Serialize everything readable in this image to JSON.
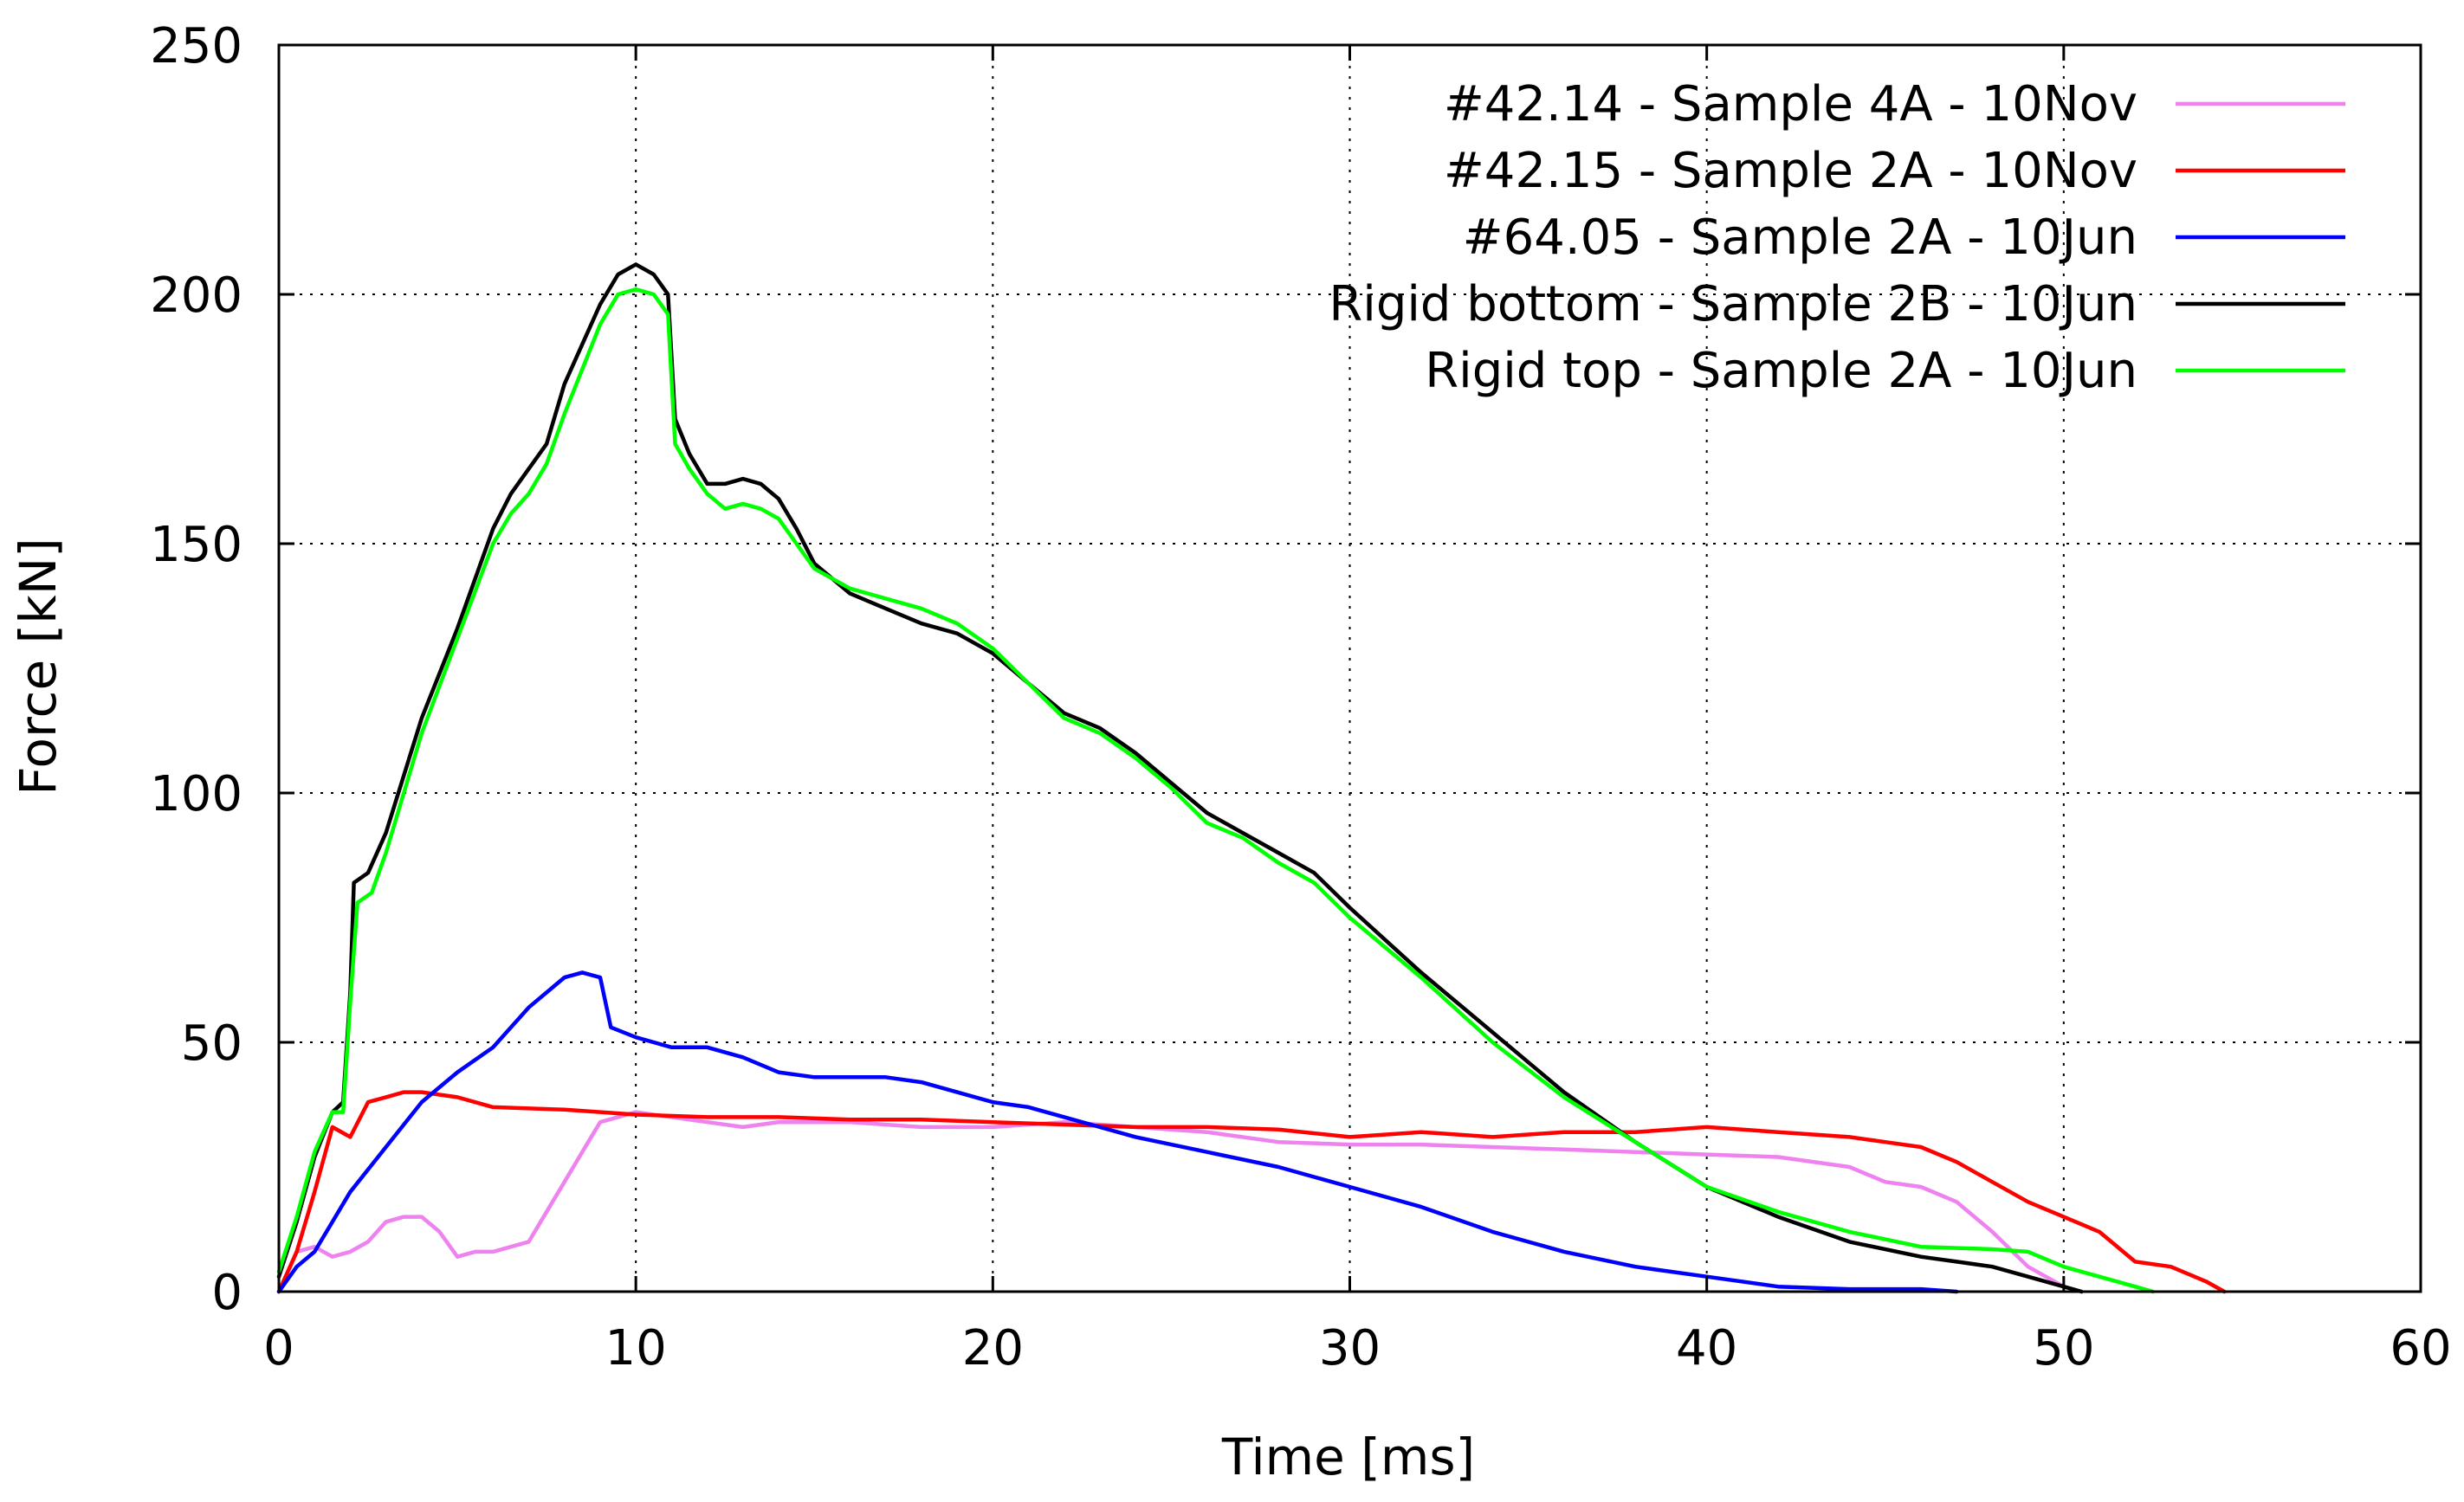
{
  "chart_data": {
    "type": "line",
    "title": "",
    "xlabel": "Time [ms]",
    "ylabel": "Force [kN]",
    "xlim": [
      0,
      60
    ],
    "ylim": [
      0,
      250
    ],
    "xticks": [
      0,
      10,
      20,
      30,
      40,
      50,
      60
    ],
    "yticks": [
      0,
      50,
      100,
      150,
      200,
      250
    ],
    "xtick_labels": [
      "0",
      "10",
      "20",
      "30",
      "40",
      "50",
      "60"
    ],
    "ytick_labels": [
      "0",
      "50",
      "100",
      "150",
      "200",
      "250"
    ],
    "grid": true,
    "legend_position": "top-right",
    "series": [
      {
        "name": "#42.14 - Sample 4A - 10Nov",
        "color": "#ee82ee",
        "x": [
          0,
          0.5,
          1,
          1.5,
          2,
          2.5,
          3,
          3.5,
          4,
          4.5,
          5,
          5.5,
          6,
          6.5,
          7,
          7.5,
          8,
          8.5,
          9,
          10,
          11,
          12,
          13,
          14,
          15,
          16,
          18,
          20,
          22,
          24,
          26,
          28,
          30,
          32,
          34,
          36,
          38,
          40,
          42,
          44,
          45,
          46,
          47,
          48,
          49,
          50,
          50.5
        ],
        "y": [
          0,
          8,
          9,
          7,
          8,
          10,
          14,
          15,
          15,
          12,
          7,
          8,
          8,
          9,
          10,
          16,
          22,
          28,
          34,
          36,
          35,
          34,
          33,
          34,
          34,
          34,
          33,
          33,
          34,
          33,
          32,
          30,
          29.5,
          29.5,
          29,
          28.5,
          28,
          27.5,
          27,
          25,
          22,
          21,
          18,
          12,
          5,
          1,
          0
        ]
      },
      {
        "name": "#42.15 - Sample 2A - 10Nov",
        "color": "#ff0000",
        "x": [
          0,
          0.5,
          1,
          1.5,
          2,
          2.5,
          3,
          3.5,
          4,
          5,
          6,
          8,
          10,
          12,
          14,
          16,
          18,
          20,
          22,
          24,
          26,
          28,
          30,
          32,
          34,
          36,
          38,
          40,
          42,
          44,
          45,
          46,
          47,
          48,
          49,
          50,
          51,
          52,
          53,
          54,
          54.5
        ],
        "y": [
          0,
          8,
          20,
          33,
          31,
          38,
          39,
          40,
          40,
          39,
          37,
          36.5,
          35.5,
          35,
          35,
          34.5,
          34.5,
          34,
          33.5,
          33,
          33,
          32.5,
          31,
          32,
          31,
          32,
          32,
          33,
          32,
          31,
          30,
          29,
          26,
          22,
          18,
          15,
          12,
          6,
          5,
          2,
          0
        ]
      },
      {
        "name": "#64.05 - Sample 2A - 10Jun",
        "color": "#0000ff",
        "x": [
          0,
          0.5,
          1,
          1.5,
          2,
          3,
          4,
          5,
          6,
          7,
          8,
          8.5,
          9,
          9.3,
          10,
          11,
          12,
          13,
          14,
          15,
          16,
          17,
          18,
          19,
          20,
          21,
          22,
          24,
          26,
          28,
          30,
          32,
          34,
          36,
          38,
          40,
          42,
          44,
          46,
          47
        ],
        "y": [
          0,
          5,
          8,
          14,
          20,
          29,
          38,
          44,
          49,
          57,
          63,
          64,
          63,
          53,
          51,
          49,
          49,
          47,
          44,
          43,
          43,
          43,
          42,
          40,
          38,
          37,
          35,
          31,
          28,
          25,
          21,
          17,
          12,
          8,
          5,
          3,
          1,
          0.5,
          0.5,
          0
        ]
      },
      {
        "name": "Rigid bottom - Sample 2B - 10Jun",
        "color": "#000000",
        "x": [
          0,
          0.5,
          1,
          1.5,
          1.8,
          2,
          2.1,
          2.5,
          3,
          4,
          5,
          6,
          6.5,
          7,
          7.5,
          8,
          9,
          9.5,
          10,
          10.5,
          10.9,
          11.1,
          11.5,
          12,
          12.5,
          13,
          13.5,
          14,
          14.5,
          15,
          16,
          17,
          18,
          19,
          20,
          21,
          22,
          23,
          24,
          25,
          26,
          27,
          28,
          29,
          30,
          32,
          34,
          36,
          38,
          40,
          42,
          44,
          46,
          47,
          48,
          49,
          50,
          50.5
        ],
        "y": [
          3,
          14,
          27,
          36,
          38,
          60,
          82,
          84,
          92,
          115,
          133,
          153,
          160,
          165,
          170,
          182,
          198,
          204,
          206,
          204,
          200,
          175,
          168,
          162,
          162,
          163,
          162,
          159,
          153,
          146,
          140,
          137,
          134,
          132,
          128,
          122,
          116,
          113,
          108,
          102,
          96,
          92,
          88,
          84,
          77,
          64,
          52,
          40,
          30,
          21,
          15,
          10,
          7,
          6,
          5,
          3,
          1,
          0
        ]
      },
      {
        "name": "Rigid top - Sample 2A - 10Jun",
        "color": "#00ff00",
        "x": [
          0,
          0.5,
          1,
          1.5,
          1.8,
          2,
          2.2,
          2.6,
          3,
          4,
          5,
          6,
          6.5,
          7,
          7.5,
          8,
          9,
          9.5,
          10,
          10.5,
          10.9,
          11.1,
          11.5,
          12,
          12.5,
          13,
          13.5,
          14,
          14.5,
          15,
          16,
          17,
          18,
          19,
          20,
          21,
          22,
          23,
          24,
          25,
          26,
          27,
          28,
          29,
          30,
          32,
          34,
          36,
          38,
          40,
          42,
          44,
          46,
          48,
          49,
          50,
          51,
          52,
          52.5
        ],
        "y": [
          4,
          15,
          28,
          36,
          36,
          58,
          78,
          80,
          88,
          112,
          131,
          150,
          156,
          160,
          166,
          176,
          194,
          200,
          201,
          200,
          196,
          170,
          165,
          160,
          157,
          158,
          157,
          155,
          150,
          145,
          141,
          139,
          137,
          134,
          129,
          122,
          115,
          112,
          107,
          101,
          94,
          91,
          86,
          82,
          75,
          63,
          50,
          39,
          30,
          21,
          16,
          12,
          9,
          8.5,
          8,
          5,
          3,
          1,
          0
        ]
      }
    ]
  }
}
